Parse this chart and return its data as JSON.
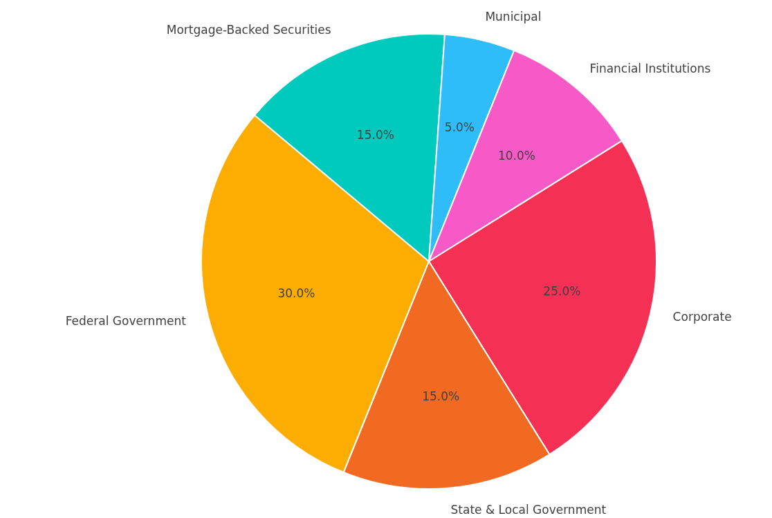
{
  "chart_data": {
    "type": "pie",
    "categories": [
      "Federal Government",
      "Mortgage-Backed Securities",
      "Municipal",
      "Financial Institutions",
      "Corporate",
      "State & Local Government"
    ],
    "values": [
      30,
      15,
      5,
      10,
      25,
      15
    ],
    "value_labels": [
      "30.0%",
      "15.0%",
      "5.0%",
      "10.0%",
      "25.0%",
      "15.0%"
    ],
    "colors": [
      "#fdac01",
      "#00c9bd",
      "#2ebdf9",
      "#f759c7",
      "#f43155",
      "#f26a22"
    ],
    "legend": false
  }
}
